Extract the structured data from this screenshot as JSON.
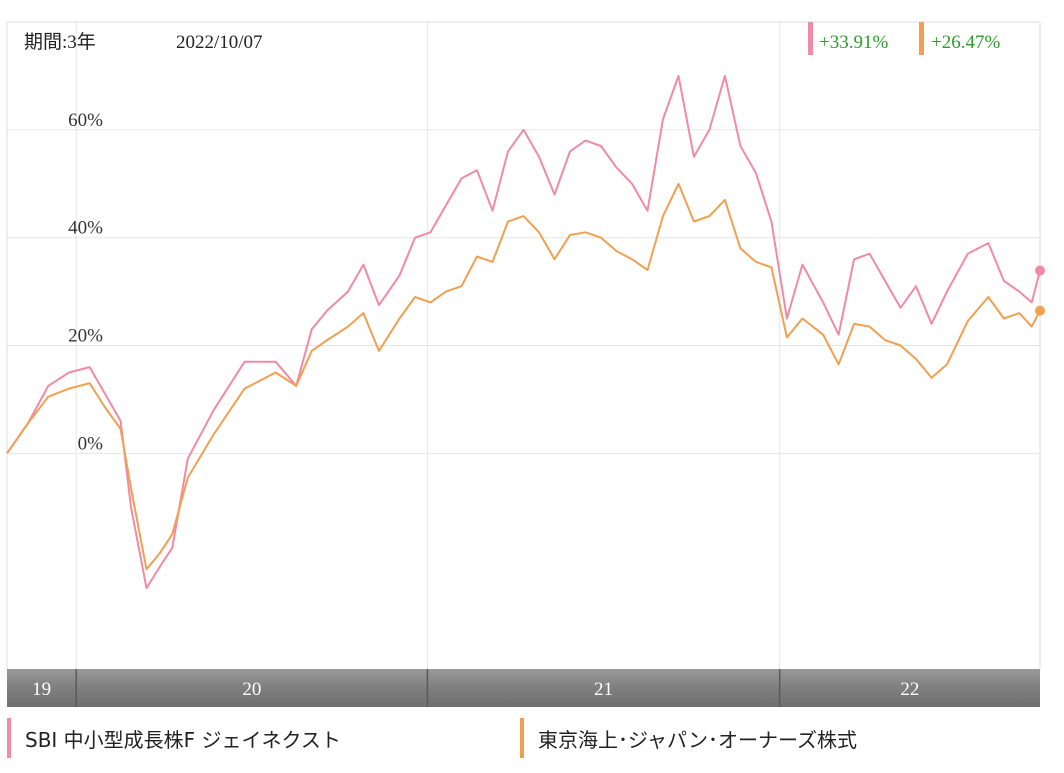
{
  "header": {
    "period_label": "期間:3年",
    "date": "2022/10/07",
    "returns": [
      {
        "value": "+33.91%",
        "color": "#f08aa6"
      },
      {
        "value": "+26.47%",
        "color": "#f0a050"
      }
    ]
  },
  "legend": [
    {
      "label": "SBI 中小型成長株F ジェイネクスト",
      "color": "#f08aa6"
    },
    {
      "label": "東京海上･ジャパン･オーナーズ株式",
      "color": "#f0a050"
    }
  ],
  "chart_data": {
    "type": "line",
    "ylim": [
      -40,
      80
    ],
    "grid": true,
    "ytick_labels": [
      {
        "value": 60,
        "label": "60%"
      },
      {
        "value": 40,
        "label": "40%"
      },
      {
        "value": 20,
        "label": "20%"
      },
      {
        "value": 0,
        "label": "0%"
      }
    ],
    "xtick_labels": [
      {
        "label": "19",
        "x_start": 0,
        "x_end": 0.067
      },
      {
        "label": "20",
        "x_start": 0.067,
        "x_end": 0.407
      },
      {
        "label": "21",
        "x_start": 0.407,
        "x_end": 0.748
      },
      {
        "label": "22",
        "x_start": 0.748,
        "x_end": 1.0
      }
    ],
    "series": [
      {
        "name": "SBI 中小型成長株F ジェイネクスト",
        "color": "#f08aa6",
        "points": [
          [
            0.0,
            0.0
          ],
          [
            0.02,
            5.5
          ],
          [
            0.04,
            12.5
          ],
          [
            0.06,
            15.0
          ],
          [
            0.08,
            16.0
          ],
          [
            0.095,
            11.0
          ],
          [
            0.11,
            6.0
          ],
          [
            0.12,
            -10.0
          ],
          [
            0.135,
            -25.0
          ],
          [
            0.148,
            -21.0
          ],
          [
            0.16,
            -17.5
          ],
          [
            0.175,
            -1.0
          ],
          [
            0.2,
            8.0
          ],
          [
            0.23,
            17.0
          ],
          [
            0.26,
            17.0
          ],
          [
            0.28,
            12.5
          ],
          [
            0.295,
            23.0
          ],
          [
            0.31,
            26.5
          ],
          [
            0.33,
            30.0
          ],
          [
            0.345,
            35.0
          ],
          [
            0.36,
            27.5
          ],
          [
            0.38,
            33.0
          ],
          [
            0.395,
            40.0
          ],
          [
            0.41,
            41.0
          ],
          [
            0.425,
            46.0
          ],
          [
            0.44,
            51.0
          ],
          [
            0.455,
            52.5
          ],
          [
            0.47,
            45.0
          ],
          [
            0.485,
            56.0
          ],
          [
            0.5,
            60.0
          ],
          [
            0.515,
            55.0
          ],
          [
            0.53,
            48.0
          ],
          [
            0.545,
            56.0
          ],
          [
            0.56,
            58.0
          ],
          [
            0.575,
            57.0
          ],
          [
            0.59,
            53.0
          ],
          [
            0.605,
            50.0
          ],
          [
            0.62,
            45.0
          ],
          [
            0.635,
            62.0
          ],
          [
            0.65,
            70.0
          ],
          [
            0.665,
            55.0
          ],
          [
            0.68,
            60.0
          ],
          [
            0.695,
            70.0
          ],
          [
            0.71,
            57.0
          ],
          [
            0.725,
            52.0
          ],
          [
            0.74,
            43.0
          ],
          [
            0.755,
            25.0
          ],
          [
            0.77,
            35.0
          ],
          [
            0.79,
            28.0
          ],
          [
            0.805,
            22.0
          ],
          [
            0.82,
            36.0
          ],
          [
            0.835,
            37.0
          ],
          [
            0.85,
            32.0
          ],
          [
            0.865,
            27.0
          ],
          [
            0.88,
            31.0
          ],
          [
            0.895,
            24.0
          ],
          [
            0.91,
            30.0
          ],
          [
            0.93,
            37.0
          ],
          [
            0.95,
            39.0
          ],
          [
            0.965,
            32.0
          ],
          [
            0.98,
            30.0
          ],
          [
            0.992,
            28.0
          ],
          [
            1.0,
            33.91
          ]
        ]
      },
      {
        "name": "東京海上･ジャパン･オーナーズ株式",
        "color": "#f0a050",
        "points": [
          [
            0.0,
            0.0
          ],
          [
            0.02,
            5.5
          ],
          [
            0.04,
            10.5
          ],
          [
            0.06,
            12.0
          ],
          [
            0.08,
            13.0
          ],
          [
            0.095,
            8.5
          ],
          [
            0.11,
            4.5
          ],
          [
            0.12,
            -6.5
          ],
          [
            0.135,
            -21.5
          ],
          [
            0.148,
            -18.5
          ],
          [
            0.16,
            -15.0
          ],
          [
            0.175,
            -4.5
          ],
          [
            0.2,
            3.5
          ],
          [
            0.23,
            12.0
          ],
          [
            0.26,
            15.0
          ],
          [
            0.28,
            12.5
          ],
          [
            0.295,
            19.0
          ],
          [
            0.31,
            21.0
          ],
          [
            0.33,
            23.5
          ],
          [
            0.345,
            26.0
          ],
          [
            0.36,
            19.0
          ],
          [
            0.38,
            25.0
          ],
          [
            0.395,
            29.0
          ],
          [
            0.41,
            28.0
          ],
          [
            0.425,
            30.0
          ],
          [
            0.44,
            31.0
          ],
          [
            0.455,
            36.5
          ],
          [
            0.47,
            35.5
          ],
          [
            0.485,
            43.0
          ],
          [
            0.5,
            44.0
          ],
          [
            0.515,
            41.0
          ],
          [
            0.53,
            36.0
          ],
          [
            0.545,
            40.5
          ],
          [
            0.56,
            41.0
          ],
          [
            0.575,
            40.0
          ],
          [
            0.59,
            37.5
          ],
          [
            0.605,
            36.0
          ],
          [
            0.62,
            34.0
          ],
          [
            0.635,
            44.0
          ],
          [
            0.65,
            50.0
          ],
          [
            0.665,
            43.0
          ],
          [
            0.68,
            44.0
          ],
          [
            0.695,
            47.0
          ],
          [
            0.71,
            38.0
          ],
          [
            0.725,
            35.5
          ],
          [
            0.74,
            34.5
          ],
          [
            0.755,
            21.5
          ],
          [
            0.77,
            25.0
          ],
          [
            0.79,
            22.0
          ],
          [
            0.805,
            16.5
          ],
          [
            0.82,
            24.0
          ],
          [
            0.835,
            23.5
          ],
          [
            0.85,
            21.0
          ],
          [
            0.865,
            20.0
          ],
          [
            0.88,
            17.5
          ],
          [
            0.895,
            14.0
          ],
          [
            0.91,
            16.5
          ],
          [
            0.93,
            24.5
          ],
          [
            0.95,
            29.0
          ],
          [
            0.965,
            25.0
          ],
          [
            0.98,
            26.0
          ],
          [
            0.992,
            23.5
          ],
          [
            1.0,
            26.47
          ]
        ]
      }
    ]
  }
}
